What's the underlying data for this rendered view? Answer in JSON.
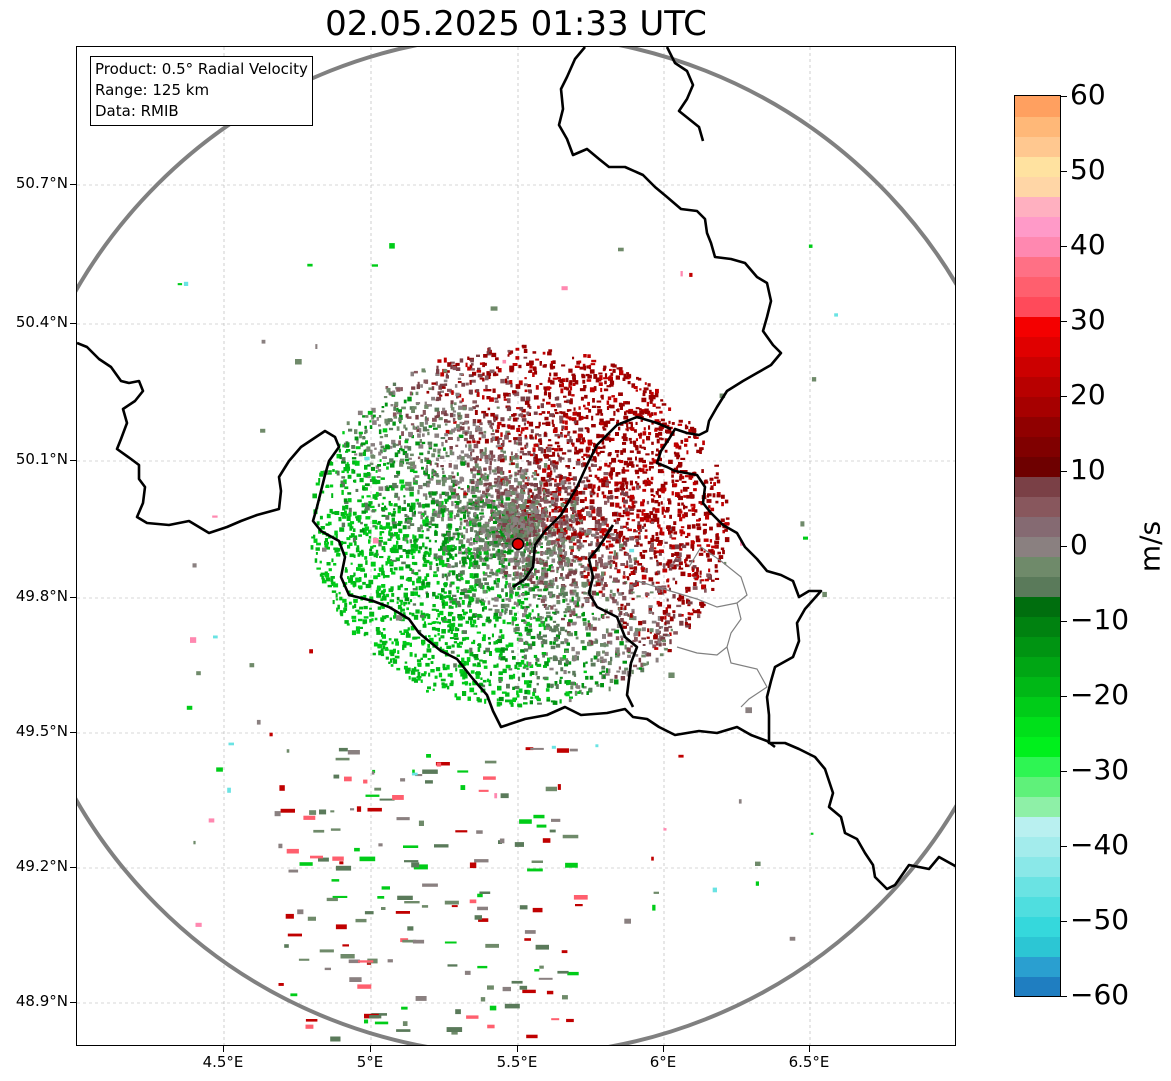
{
  "title": "02.05.2025 01:33 UTC",
  "info": {
    "product": "Product: 0.5° Radial Velocity",
    "range": "Range: 125 km",
    "data": "Data: RMIB"
  },
  "axes": {
    "lat_ticks": [
      "50.7°N",
      "50.4°N",
      "50.1°N",
      "49.8°N",
      "49.5°N",
      "49.2°N",
      "48.9°N"
    ],
    "lon_ticks": [
      "4.5°E",
      "5°E",
      "5.5°E",
      "6°E",
      "6.5°E"
    ]
  },
  "colorbar": {
    "unit": "m/s",
    "labels": [
      "60",
      "50",
      "40",
      "30",
      "20",
      "10",
      "0",
      "−10",
      "−20",
      "−30",
      "−40",
      "−50",
      "−60"
    ],
    "colors": [
      "#1f7ec1",
      "#2a9fd0",
      "#2cc6d4",
      "#35d8dc",
      "#4fdedf",
      "#6ae3e3",
      "#8ae8e8",
      "#a3ecec",
      "#b9f0f0",
      "#8ef0a7",
      "#5ff17a",
      "#2ef553",
      "#00f01c",
      "#00e01a",
      "#00cc18",
      "#00b816",
      "#00a614",
      "#009412",
      "#008210",
      "#006e0e",
      "#5a7a5a",
      "#6f8a6a",
      "#8a8080",
      "#856a72",
      "#88575d",
      "#7a4046",
      "#6e0000",
      "#800000",
      "#900000",
      "#a60000",
      "#b80000",
      "#cc0000",
      "#e00000",
      "#f40000",
      "#ff4a5a",
      "#ff5f6e",
      "#ff7085",
      "#ff88b0",
      "#ff9ac8",
      "#ffb0c0",
      "#ffd6a6",
      "#ffe2a0",
      "#ffc890",
      "#ffb878",
      "#ffa060"
    ],
    "min": -60,
    "max": 60
  },
  "radar_site": {
    "lat": 49.914,
    "lon": 5.505,
    "color": "#ff0000"
  }
}
